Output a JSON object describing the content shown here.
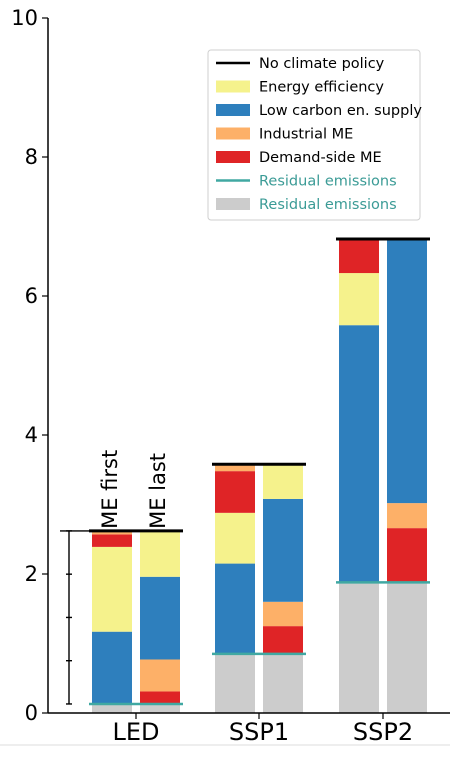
{
  "chart_data": {
    "type": "bar",
    "stacked": true,
    "categories": [
      "LED",
      "SSP1",
      "SSP2"
    ],
    "ylim": [
      0,
      10
    ],
    "yticks": [
      0,
      2,
      4,
      6,
      8,
      10
    ],
    "grid": false,
    "legend_position": "top-right",
    "legend": [
      {
        "label": "No climate policy",
        "kind": "line",
        "color": "#000000",
        "text_color": "#000000"
      },
      {
        "label": "Energy efficiency",
        "kind": "patch",
        "color": "#f5f28c",
        "text_color": "#000000"
      },
      {
        "label": "Low carbon en. supply",
        "kind": "patch",
        "color": "#2e7fbd",
        "text_color": "#000000"
      },
      {
        "label": "Industrial ME",
        "kind": "patch",
        "color": "#fdb068",
        "text_color": "#000000"
      },
      {
        "label": "Demand-side ME",
        "kind": "patch",
        "color": "#df2426",
        "text_color": "#000000"
      },
      {
        "label": "Residual emissions",
        "kind": "line",
        "color": "#40a8a2",
        "text_color": "#3b9b96"
      },
      {
        "label": "Residual emissions",
        "kind": "patch",
        "color": "#cccccc",
        "text_color": "#3b9b96"
      }
    ],
    "bar_labels": [
      "ME first",
      "ME last"
    ],
    "groups": [
      {
        "category": "LED",
        "no_climate_policy": 2.62,
        "residual": 0.13,
        "bars": [
          {
            "name": "ME first",
            "segments": [
              {
                "component": "Residual emissions",
                "value": 0.13,
                "color": "#cccccc"
              },
              {
                "component": "Low carbon en. supply",
                "value": 1.04,
                "color": "#2e7fbd"
              },
              {
                "component": "Energy efficiency",
                "value": 1.22,
                "color": "#f5f28c"
              },
              {
                "component": "Demand-side ME",
                "value": 0.18,
                "color": "#df2426"
              },
              {
                "component": "Industrial ME",
                "value": 0.05,
                "color": "#fdb068"
              }
            ]
          },
          {
            "name": "ME last",
            "segments": [
              {
                "component": "Residual emissions",
                "value": 0.13,
                "color": "#cccccc"
              },
              {
                "component": "Demand-side ME",
                "value": 0.18,
                "color": "#df2426"
              },
              {
                "component": "Industrial ME",
                "value": 0.46,
                "color": "#fdb068"
              },
              {
                "component": "Low carbon en. supply",
                "value": 1.19,
                "color": "#2e7fbd"
              },
              {
                "component": "Energy efficiency",
                "value": 0.66,
                "color": "#f5f28c"
              }
            ]
          }
        ]
      },
      {
        "category": "SSP1",
        "no_climate_policy": 3.58,
        "residual": 0.85,
        "bars": [
          {
            "name": "ME first",
            "segments": [
              {
                "component": "Residual emissions",
                "value": 0.85,
                "color": "#cccccc"
              },
              {
                "component": "Low carbon en. supply",
                "value": 1.3,
                "color": "#2e7fbd"
              },
              {
                "component": "Energy efficiency",
                "value": 0.73,
                "color": "#f5f28c"
              },
              {
                "component": "Demand-side ME",
                "value": 0.6,
                "color": "#df2426"
              },
              {
                "component": "Industrial ME",
                "value": 0.1,
                "color": "#fdb068"
              }
            ]
          },
          {
            "name": "ME last",
            "segments": [
              {
                "component": "Residual emissions",
                "value": 0.85,
                "color": "#cccccc"
              },
              {
                "component": "Demand-side ME",
                "value": 0.4,
                "color": "#df2426"
              },
              {
                "component": "Industrial ME",
                "value": 0.35,
                "color": "#fdb068"
              },
              {
                "component": "Low carbon en. supply",
                "value": 1.48,
                "color": "#2e7fbd"
              },
              {
                "component": "Energy efficiency",
                "value": 0.5,
                "color": "#f5f28c"
              }
            ]
          }
        ]
      },
      {
        "category": "SSP2",
        "no_climate_policy": 6.82,
        "residual": 1.88,
        "bars": [
          {
            "name": "ME first",
            "segments": [
              {
                "component": "Residual emissions",
                "value": 1.88,
                "color": "#cccccc"
              },
              {
                "component": "Low carbon en. supply",
                "value": 3.7,
                "color": "#2e7fbd"
              },
              {
                "component": "Energy efficiency",
                "value": 0.75,
                "color": "#f5f28c"
              },
              {
                "component": "Demand-side ME",
                "value": 0.49,
                "color": "#df2426"
              }
            ]
          },
          {
            "name": "ME last",
            "segments": [
              {
                "component": "Residual emissions",
                "value": 1.88,
                "color": "#cccccc"
              },
              {
                "component": "Demand-side ME",
                "value": 0.78,
                "color": "#df2426"
              },
              {
                "component": "Industrial ME",
                "value": 0.36,
                "color": "#fdb068"
              },
              {
                "component": "Low carbon en. supply",
                "value": 3.8,
                "color": "#2e7fbd"
              }
            ]
          }
        ]
      }
    ]
  }
}
